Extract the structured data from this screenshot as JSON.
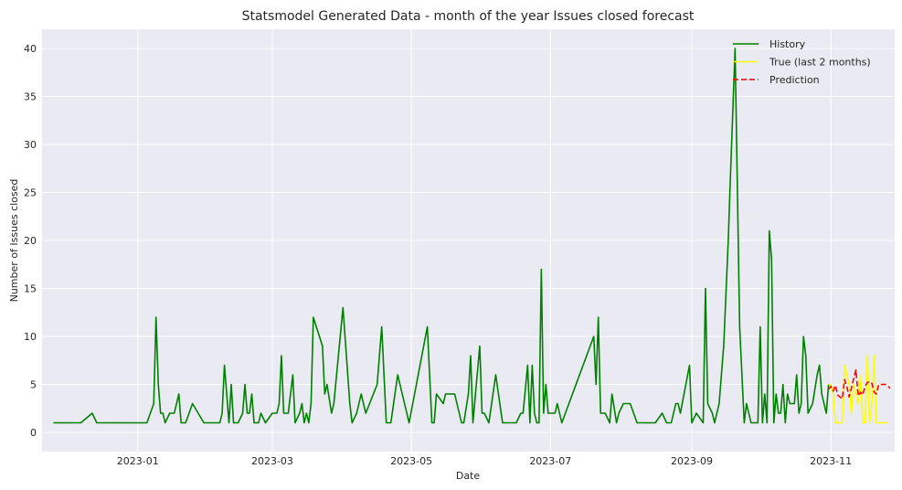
{
  "chart_data": {
    "type": "line",
    "title": "Statsmodel Generated Data - month of the year Issues closed forecast",
    "xlabel": "Date",
    "ylabel": "Number of Issues closed",
    "xlim": [
      "2023-11-23",
      "2023-11-29"
    ],
    "xlim_dates": [
      "2022-11-20",
      "2023-11-29"
    ],
    "ylim": [
      -2,
      42
    ],
    "yticks": [
      0,
      5,
      10,
      15,
      20,
      25,
      30,
      35,
      40
    ],
    "xticks": [
      "2023-01",
      "2023-03",
      "2023-05",
      "2023-07",
      "2023-09",
      "2023-11"
    ],
    "grid": true,
    "legend_position": "top-right",
    "series": [
      {
        "name": "History",
        "color": "#008000",
        "points": [
          [
            "2022-11-25",
            1
          ],
          [
            "2022-12-07",
            1
          ],
          [
            "2022-12-12",
            2
          ],
          [
            "2022-12-14",
            1
          ],
          [
            "2023-01-05",
            1
          ],
          [
            "2023-01-08",
            3
          ],
          [
            "2023-01-09",
            12
          ],
          [
            "2023-01-10",
            5
          ],
          [
            "2023-01-11",
            2
          ],
          [
            "2023-01-12",
            2
          ],
          [
            "2023-01-13",
            1
          ],
          [
            "2023-01-15",
            2
          ],
          [
            "2023-01-17",
            2
          ],
          [
            "2023-01-18",
            3
          ],
          [
            "2023-01-19",
            4
          ],
          [
            "2023-01-20",
            1
          ],
          [
            "2023-01-22",
            1
          ],
          [
            "2023-01-25",
            3
          ],
          [
            "2023-01-30",
            1
          ],
          [
            "2023-02-06",
            1
          ],
          [
            "2023-02-07",
            2
          ],
          [
            "2023-02-08",
            7
          ],
          [
            "2023-02-09",
            4
          ],
          [
            "2023-02-10",
            1
          ],
          [
            "2023-02-11",
            5
          ],
          [
            "2023-02-12",
            1
          ],
          [
            "2023-02-14",
            1
          ],
          [
            "2023-02-16",
            2
          ],
          [
            "2023-02-17",
            5
          ],
          [
            "2023-02-18",
            2
          ],
          [
            "2023-02-19",
            2
          ],
          [
            "2023-02-20",
            4
          ],
          [
            "2023-02-21",
            1
          ],
          [
            "2023-02-23",
            1
          ],
          [
            "2023-02-24",
            2
          ],
          [
            "2023-02-26",
            1
          ],
          [
            "2023-03-01",
            2
          ],
          [
            "2023-03-03",
            2
          ],
          [
            "2023-03-04",
            3
          ],
          [
            "2023-03-05",
            8
          ],
          [
            "2023-03-06",
            2
          ],
          [
            "2023-03-08",
            2
          ],
          [
            "2023-03-10",
            6
          ],
          [
            "2023-03-11",
            1
          ],
          [
            "2023-03-13",
            2
          ],
          [
            "2023-03-14",
            3
          ],
          [
            "2023-03-15",
            1
          ],
          [
            "2023-03-16",
            2
          ],
          [
            "2023-03-17",
            1
          ],
          [
            "2023-03-18",
            3
          ],
          [
            "2023-03-19",
            12
          ],
          [
            "2023-03-23",
            9
          ],
          [
            "2023-03-24",
            4
          ],
          [
            "2023-03-25",
            5
          ],
          [
            "2023-03-27",
            2
          ],
          [
            "2023-03-28",
            3
          ],
          [
            "2023-04-01",
            13
          ],
          [
            "2023-04-04",
            3
          ],
          [
            "2023-04-05",
            1
          ],
          [
            "2023-04-07",
            2
          ],
          [
            "2023-04-09",
            4
          ],
          [
            "2023-04-11",
            2
          ],
          [
            "2023-04-16",
            5
          ],
          [
            "2023-04-18",
            11
          ],
          [
            "2023-04-20",
            1
          ],
          [
            "2023-04-22",
            1
          ],
          [
            "2023-04-25",
            6
          ],
          [
            "2023-04-30",
            1
          ],
          [
            "2023-05-08",
            11
          ],
          [
            "2023-05-10",
            1
          ],
          [
            "2023-05-11",
            1
          ],
          [
            "2023-05-12",
            4
          ],
          [
            "2023-05-15",
            3
          ],
          [
            "2023-05-16",
            4
          ],
          [
            "2023-05-20",
            4
          ],
          [
            "2023-05-22",
            2
          ],
          [
            "2023-05-23",
            1
          ],
          [
            "2023-05-24",
            1
          ],
          [
            "2023-05-26",
            4
          ],
          [
            "2023-05-27",
            8
          ],
          [
            "2023-05-28",
            1
          ],
          [
            "2023-05-31",
            9
          ],
          [
            "2023-06-01",
            2
          ],
          [
            "2023-06-02",
            2
          ],
          [
            "2023-06-04",
            1
          ],
          [
            "2023-06-07",
            6
          ],
          [
            "2023-06-10",
            1
          ],
          [
            "2023-06-16",
            1
          ],
          [
            "2023-06-18",
            2
          ],
          [
            "2023-06-19",
            2
          ],
          [
            "2023-06-21",
            7
          ],
          [
            "2023-06-22",
            1
          ],
          [
            "2023-06-23",
            7
          ],
          [
            "2023-06-24",
            2
          ],
          [
            "2023-06-25",
            1
          ],
          [
            "2023-06-26",
            1
          ],
          [
            "2023-06-27",
            17
          ],
          [
            "2023-06-28",
            2
          ],
          [
            "2023-06-29",
            5
          ],
          [
            "2023-06-30",
            2
          ],
          [
            "2023-07-03",
            2
          ],
          [
            "2023-07-04",
            3
          ],
          [
            "2023-07-06",
            1
          ],
          [
            "2023-07-20",
            10
          ],
          [
            "2023-07-21",
            5
          ],
          [
            "2023-07-22",
            12
          ],
          [
            "2023-07-23",
            2
          ],
          [
            "2023-07-25",
            2
          ],
          [
            "2023-07-27",
            1
          ],
          [
            "2023-07-28",
            4
          ],
          [
            "2023-07-30",
            1
          ],
          [
            "2023-07-31",
            2
          ],
          [
            "2023-08-02",
            3
          ],
          [
            "2023-08-05",
            3
          ],
          [
            "2023-08-08",
            1
          ],
          [
            "2023-08-16",
            1
          ],
          [
            "2023-08-19",
            2
          ],
          [
            "2023-08-21",
            1
          ],
          [
            "2023-08-23",
            1
          ],
          [
            "2023-08-25",
            3
          ],
          [
            "2023-08-26",
            3
          ],
          [
            "2023-08-27",
            2
          ],
          [
            "2023-08-31",
            7
          ],
          [
            "2023-09-01",
            1
          ],
          [
            "2023-09-03",
            2
          ],
          [
            "2023-09-06",
            1
          ],
          [
            "2023-09-07",
            15
          ],
          [
            "2023-09-08",
            3
          ],
          [
            "2023-09-10",
            2
          ],
          [
            "2023-09-11",
            1
          ],
          [
            "2023-09-13",
            3
          ],
          [
            "2023-09-15",
            9
          ],
          [
            "2023-09-17",
            20
          ],
          [
            "2023-09-18",
            27
          ],
          [
            "2023-09-20",
            40
          ],
          [
            "2023-09-22",
            11
          ],
          [
            "2023-09-24",
            1
          ],
          [
            "2023-09-25",
            3
          ],
          [
            "2023-09-26",
            2
          ],
          [
            "2023-09-27",
            1
          ],
          [
            "2023-09-30",
            1
          ],
          [
            "2023-10-01",
            11
          ],
          [
            "2023-10-02",
            1
          ],
          [
            "2023-10-03",
            4
          ],
          [
            "2023-10-04",
            1
          ],
          [
            "2023-10-05",
            21
          ],
          [
            "2023-10-06",
            18
          ],
          [
            "2023-10-07",
            1
          ],
          [
            "2023-10-08",
            4
          ],
          [
            "2023-10-09",
            2
          ],
          [
            "2023-10-10",
            2
          ],
          [
            "2023-10-11",
            5
          ],
          [
            "2023-10-12",
            1
          ],
          [
            "2023-10-13",
            4
          ],
          [
            "2023-10-14",
            3
          ],
          [
            "2023-10-16",
            3
          ],
          [
            "2023-10-17",
            6
          ],
          [
            "2023-10-18",
            2
          ],
          [
            "2023-10-19",
            3
          ],
          [
            "2023-10-20",
            10
          ],
          [
            "2023-10-21",
            8
          ],
          [
            "2023-10-22",
            2
          ],
          [
            "2023-10-24",
            3
          ],
          [
            "2023-10-26",
            6
          ],
          [
            "2023-10-27",
            7
          ],
          [
            "2023-10-28",
            4
          ],
          [
            "2023-10-30",
            2
          ],
          [
            "2023-10-31",
            5
          ]
        ]
      },
      {
        "name": "True (last 2 months)",
        "color": "#ffff00",
        "points": [
          [
            "2023-10-31",
            5
          ],
          [
            "2023-11-01",
            5
          ],
          [
            "2023-11-02",
            4
          ],
          [
            "2023-11-03",
            1
          ],
          [
            "2023-11-04",
            1
          ],
          [
            "2023-11-06",
            1
          ],
          [
            "2023-11-07",
            7
          ],
          [
            "2023-11-08",
            6
          ],
          [
            "2023-11-09",
            5
          ],
          [
            "2023-11-10",
            2
          ],
          [
            "2023-11-11",
            5
          ],
          [
            "2023-11-12",
            4
          ],
          [
            "2023-11-13",
            3
          ],
          [
            "2023-11-14",
            6
          ],
          [
            "2023-11-15",
            1
          ],
          [
            "2023-11-16",
            1
          ],
          [
            "2023-11-17",
            8
          ],
          [
            "2023-11-18",
            1
          ],
          [
            "2023-11-19",
            3
          ],
          [
            "2023-11-20",
            8
          ],
          [
            "2023-11-21",
            1
          ],
          [
            "2023-11-26",
            1
          ]
        ]
      },
      {
        "name": "Prediction",
        "color": "#ff0000",
        "points": [
          [
            "2023-10-31",
            4.5
          ],
          [
            "2023-11-01",
            4.8
          ],
          [
            "2023-11-02",
            4.3
          ],
          [
            "2023-11-03",
            4.9
          ],
          [
            "2023-11-04",
            3.9
          ],
          [
            "2023-11-06",
            3.5
          ],
          [
            "2023-11-07",
            5.5
          ],
          [
            "2023-11-08",
            4.8
          ],
          [
            "2023-11-09",
            3.7
          ],
          [
            "2023-11-10",
            4.6
          ],
          [
            "2023-11-11",
            5.6
          ],
          [
            "2023-11-12",
            6.5
          ],
          [
            "2023-11-13",
            3.8
          ],
          [
            "2023-11-14",
            4.2
          ],
          [
            "2023-11-15",
            3.9
          ],
          [
            "2023-11-16",
            4.8
          ],
          [
            "2023-11-17",
            5.2
          ],
          [
            "2023-11-18",
            5.3
          ],
          [
            "2023-11-19",
            5.1
          ],
          [
            "2023-11-20",
            4.2
          ],
          [
            "2023-11-21",
            4.0
          ],
          [
            "2023-11-22",
            5.0
          ],
          [
            "2023-11-25",
            5.0
          ],
          [
            "2023-11-27",
            4.6
          ]
        ]
      }
    ]
  }
}
